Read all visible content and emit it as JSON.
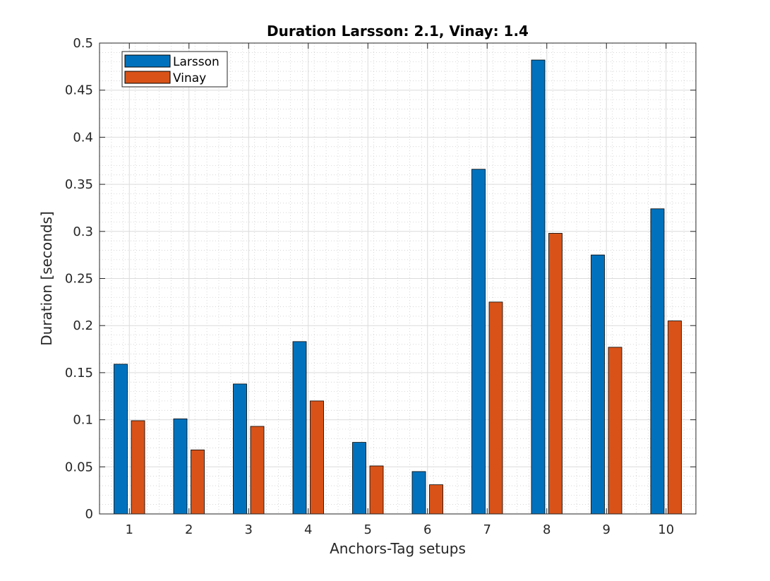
{
  "chart_data": {
    "type": "bar",
    "title": "Duration Larsson: 2.1, Vinay: 1.4",
    "xlabel": "Anchors-Tag setups",
    "ylabel": "Duration [seconds]",
    "categories": [
      "1",
      "2",
      "3",
      "4",
      "5",
      "6",
      "7",
      "8",
      "9",
      "10"
    ],
    "series": [
      {
        "name": "Larsson",
        "color": "#0072BD",
        "values": [
          0.159,
          0.101,
          0.138,
          0.183,
          0.076,
          0.045,
          0.366,
          0.482,
          0.275,
          0.324
        ]
      },
      {
        "name": "Vinay",
        "color": "#D95319",
        "values": [
          0.099,
          0.068,
          0.093,
          0.12,
          0.051,
          0.031,
          0.225,
          0.298,
          0.177,
          0.205
        ]
      }
    ],
    "ylim": [
      0,
      0.5
    ],
    "yticks": [
      "0",
      "0.05",
      "0.1",
      "0.15",
      "0.2",
      "0.25",
      "0.3",
      "0.35",
      "0.4",
      "0.45",
      "0.5"
    ],
    "grid": true,
    "minor_grid": true,
    "legend_position": "top-left"
  }
}
